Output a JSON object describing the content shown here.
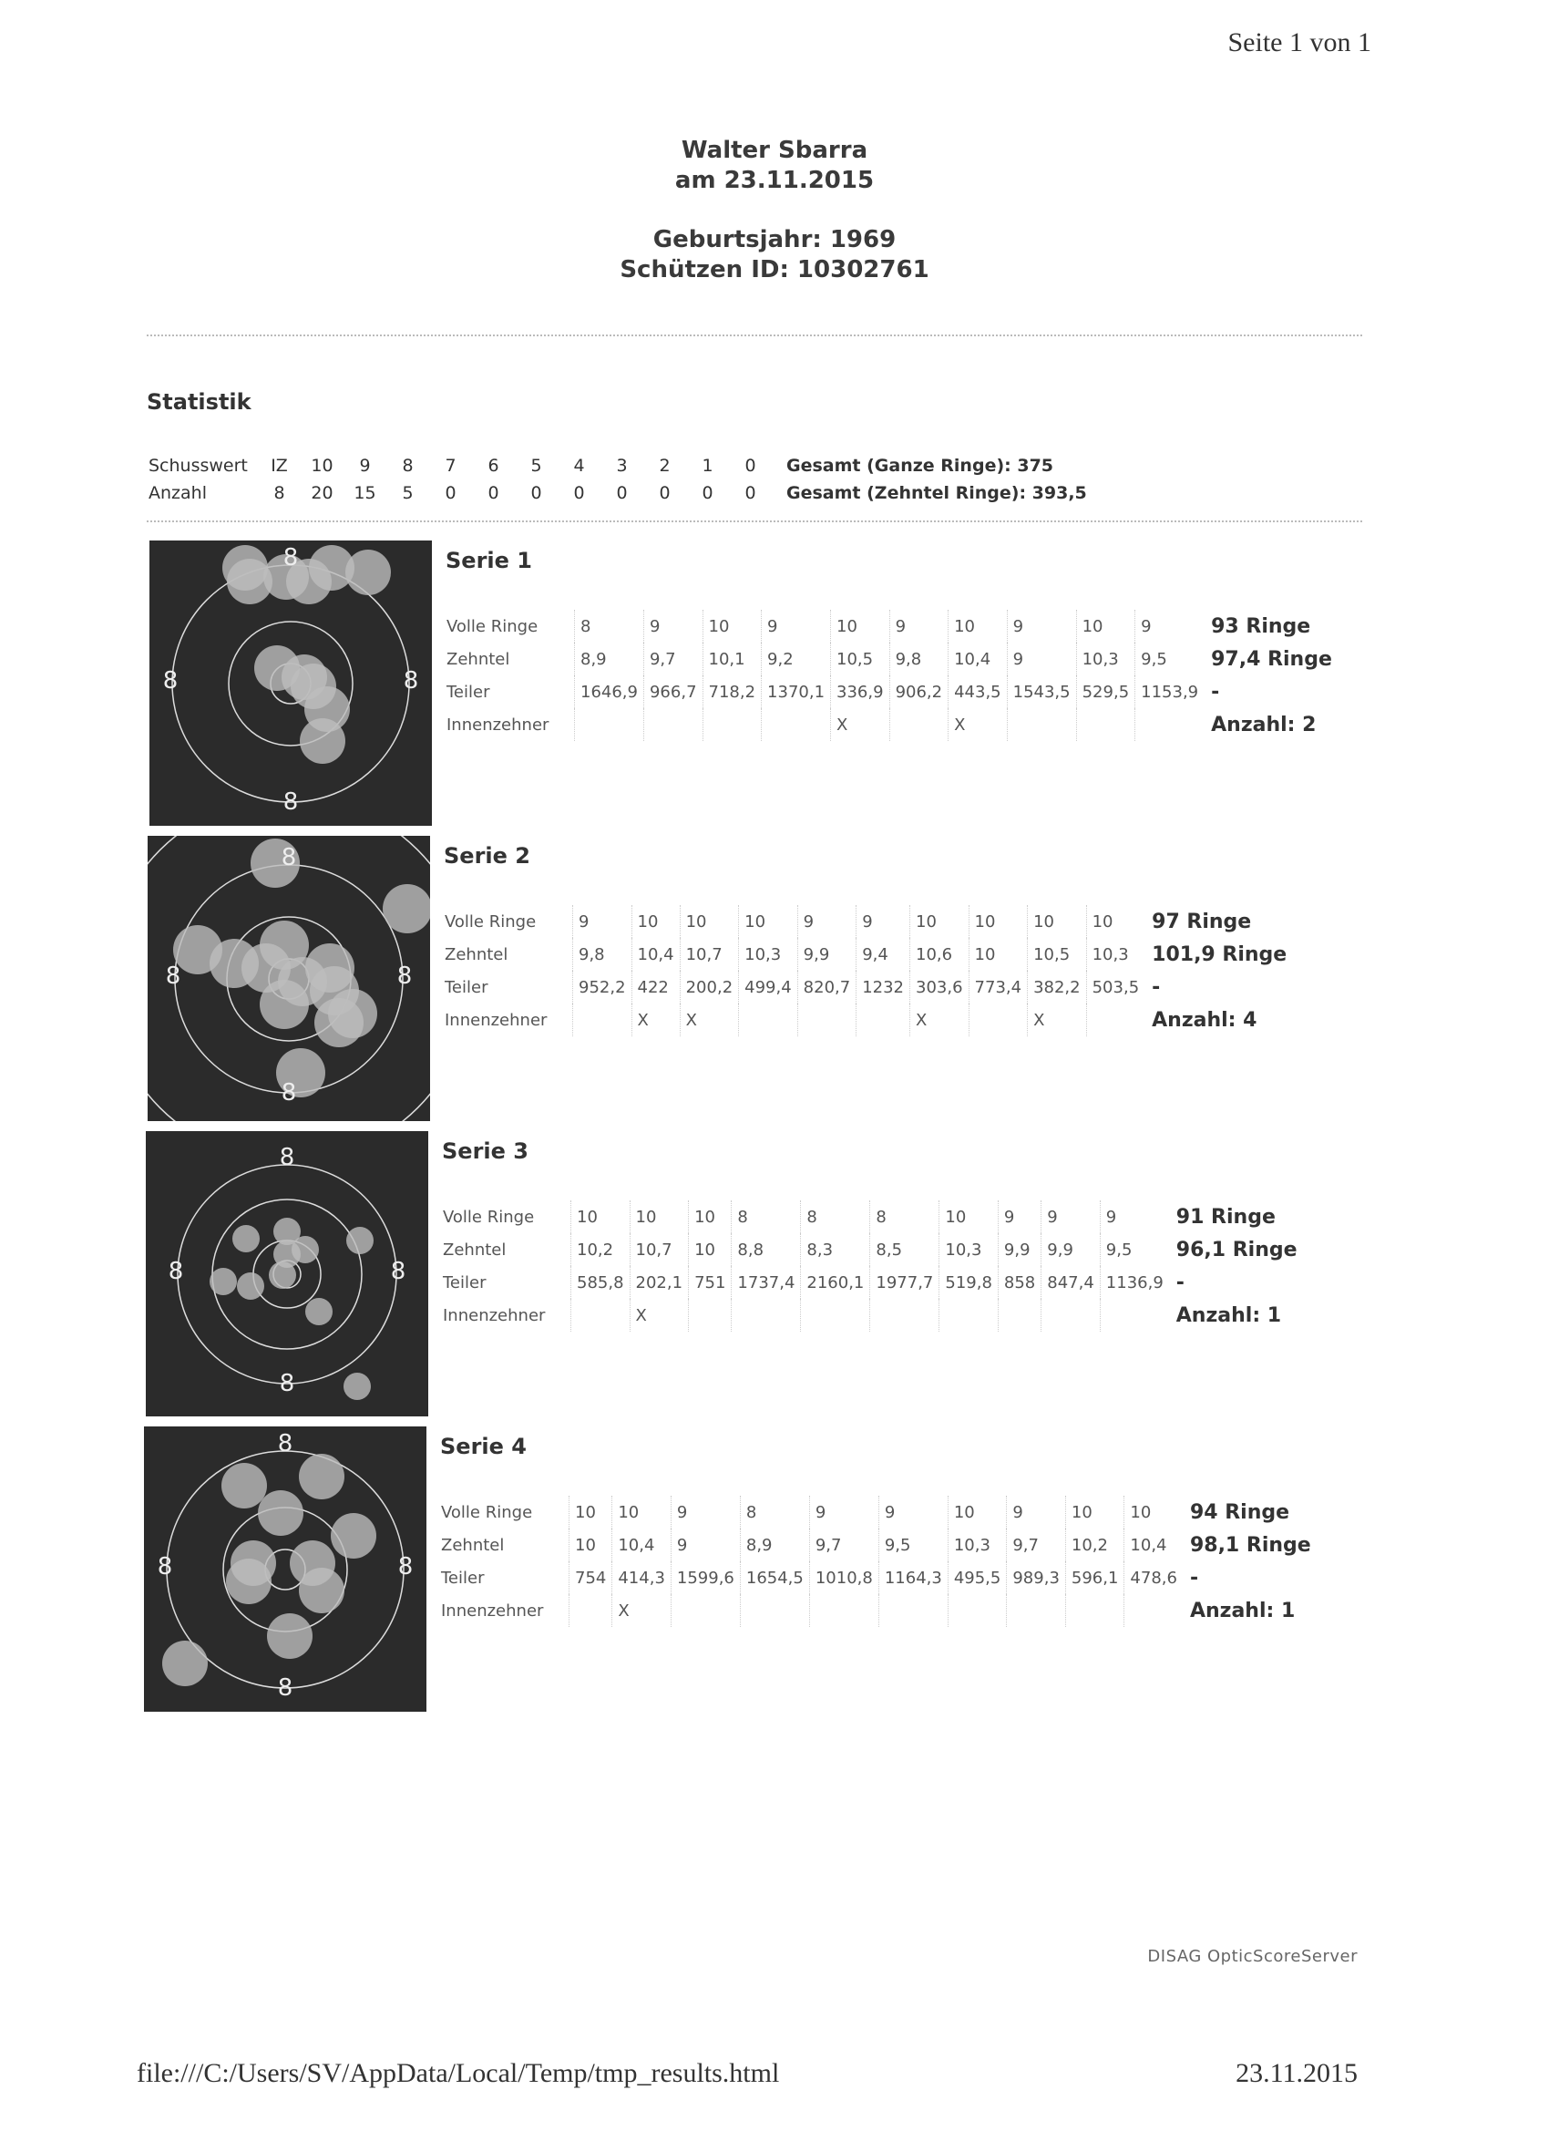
{
  "header": {
    "page_label": "Seite 1 von 1",
    "name": "Walter Sbarra",
    "date": "am 23.11.2015",
    "birth_year": "Geburtsjahr: 1969",
    "shooter_id": "Schützen ID: 10302761"
  },
  "statistics": {
    "title": "Statistik",
    "header": [
      "Schusswert",
      "IZ",
      "10",
      "9",
      "8",
      "7",
      "6",
      "5",
      "4",
      "3",
      "2",
      "1",
      "0"
    ],
    "counts": [
      "Anzahl",
      "8",
      "20",
      "15",
      "5",
      "0",
      "0",
      "0",
      "0",
      "0",
      "0",
      "0",
      "0"
    ],
    "totals": [
      "Gesamt (Ganze Ringe): 375",
      "Gesamt (Zehntel Ringe): 393,5"
    ]
  },
  "series": [
    {
      "title": "Serie 1",
      "ring_label": "8",
      "rows": [
        {
          "label": "Volle Ringe",
          "cells": [
            "8",
            "9",
            "10",
            "9",
            "10",
            "9",
            "10",
            "9",
            "10",
            "9"
          ]
        },
        {
          "label": "Zehntel",
          "cells": [
            "8,9",
            "9,7",
            "10,1",
            "9,2",
            "10,5",
            "9,8",
            "10,4",
            "9",
            "10,3",
            "9,5"
          ]
        },
        {
          "label": "Teiler",
          "cells": [
            "1646,9",
            "966,7",
            "718,2",
            "1370,1",
            "336,9",
            "906,2",
            "443,5",
            "1543,5",
            "529,5",
            "1153,9"
          ]
        },
        {
          "label": "Innenzehner",
          "cells": [
            null,
            null,
            null,
            null,
            "X",
            null,
            "X",
            null,
            null,
            null
          ]
        }
      ],
      "summary": [
        "93 Ringe",
        "97,4 Ringe",
        "-",
        "Anzahl: 2"
      ]
    },
    {
      "title": "Serie 2",
      "ring_label": "8",
      "rows": [
        {
          "label": "Volle Ringe",
          "cells": [
            "9",
            "10",
            "10",
            "10",
            "9",
            "9",
            "10",
            "10",
            "10",
            "10"
          ]
        },
        {
          "label": "Zehntel",
          "cells": [
            "9,8",
            "10,4",
            "10,7",
            "10,3",
            "9,9",
            "9,4",
            "10,6",
            "10",
            "10,5",
            "10,3"
          ]
        },
        {
          "label": "Teiler",
          "cells": [
            "952,2",
            "422",
            "200,2",
            "499,4",
            "820,7",
            "1232",
            "303,6",
            "773,4",
            "382,2",
            "503,5"
          ]
        },
        {
          "label": "Innenzehner",
          "cells": [
            null,
            "X",
            "X",
            null,
            null,
            null,
            "X",
            null,
            "X",
            null
          ]
        }
      ],
      "summary": [
        "97 Ringe",
        "101,9 Ringe",
        "-",
        "Anzahl: 4"
      ]
    },
    {
      "title": "Serie 3",
      "ring_label": "8",
      "rows": [
        {
          "label": "Volle Ringe",
          "cells": [
            "10",
            "10",
            "10",
            "8",
            "8",
            "8",
            "10",
            "9",
            "9",
            "9"
          ]
        },
        {
          "label": "Zehntel",
          "cells": [
            "10,2",
            "10,7",
            "10",
            "8,8",
            "8,3",
            "8,5",
            "10,3",
            "9,9",
            "9,9",
            "9,5"
          ]
        },
        {
          "label": "Teiler",
          "cells": [
            "585,8",
            "202,1",
            "751",
            "1737,4",
            "2160,1",
            "1977,7",
            "519,8",
            "858",
            "847,4",
            "1136,9"
          ]
        },
        {
          "label": "Innenzehner",
          "cells": [
            null,
            "X",
            null,
            null,
            null,
            null,
            null,
            null,
            null,
            null
          ]
        }
      ],
      "summary": [
        "91 Ringe",
        "96,1 Ringe",
        "-",
        "Anzahl: 1"
      ]
    },
    {
      "title": "Serie 4",
      "ring_label": "8",
      "rows": [
        {
          "label": "Volle Ringe",
          "cells": [
            "10",
            "10",
            "9",
            "8",
            "9",
            "9",
            "10",
            "9",
            "10",
            "10"
          ]
        },
        {
          "label": "Zehntel",
          "cells": [
            "10",
            "10,4",
            "9",
            "8,9",
            "9,7",
            "9,5",
            "10,3",
            "9,7",
            "10,2",
            "10,4"
          ]
        },
        {
          "label": "Teiler",
          "cells": [
            "754",
            "414,3",
            "1599,6",
            "1654,5",
            "1010,8",
            "1164,3",
            "495,5",
            "989,3",
            "596,1",
            "478,6"
          ]
        },
        {
          "label": "Innenzehner",
          "cells": [
            null,
            "X",
            null,
            null,
            null,
            null,
            null,
            null,
            null,
            null
          ]
        }
      ],
      "summary": [
        "94 Ringe",
        "98,1 Ringe",
        "-",
        "Anzahl: 1"
      ]
    }
  ],
  "footer": {
    "software": "DISAG OpticScoreServer",
    "url": "file:///C:/Users/SV/AppData/Local/Temp/tmp_results.html",
    "print_date": "23.11.2015"
  }
}
